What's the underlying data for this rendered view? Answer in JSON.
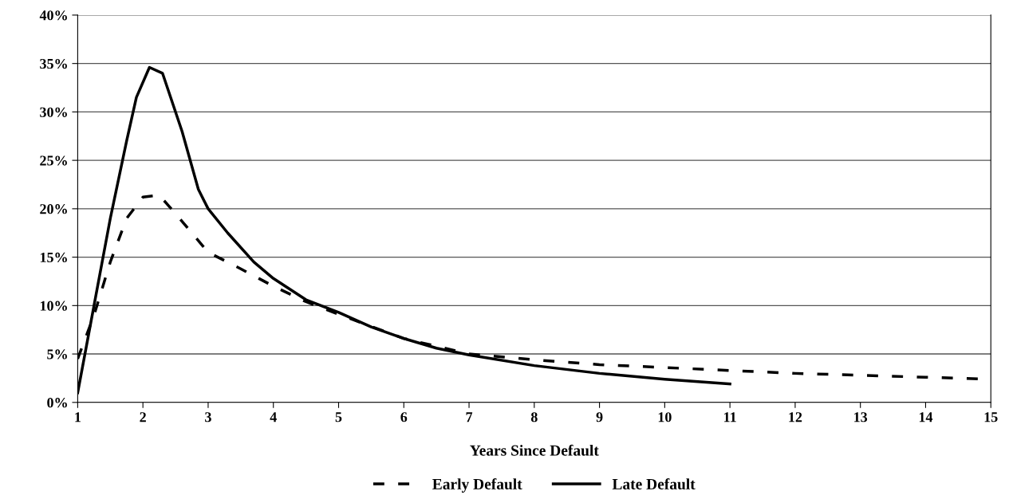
{
  "chart_data": {
    "type": "line",
    "xlabel": "Years Since Default",
    "xlim": [
      1,
      15
    ],
    "xticks": [
      1,
      2,
      3,
      4,
      5,
      6,
      7,
      8,
      9,
      10,
      11,
      12,
      13,
      14,
      15
    ],
    "ylim": [
      0,
      40
    ],
    "yticks": [
      {
        "value": 0,
        "label": "0%"
      },
      {
        "value": 5,
        "label": "5%"
      },
      {
        "value": 10,
        "label": "10%"
      },
      {
        "value": 15,
        "label": "15%"
      },
      {
        "value": 20,
        "label": "20%"
      },
      {
        "value": 25,
        "label": "25%"
      },
      {
        "value": 30,
        "label": "30%"
      },
      {
        "value": 35,
        "label": "35%"
      },
      {
        "value": 40,
        "label": "40%"
      }
    ],
    "grid": "y",
    "legend": "bottom",
    "marker": "none",
    "series": [
      {
        "name": "Early Default",
        "color": "#000000",
        "line_style": "dashed",
        "x": [
          1,
          1.25,
          1.5,
          1.75,
          2,
          2.25,
          2.5,
          2.75,
          3,
          3.5,
          4,
          4.5,
          5,
          6,
          7,
          8,
          9,
          10,
          11,
          12,
          13,
          14,
          15
        ],
        "values": [
          4.5,
          9,
          14.5,
          19,
          21.2,
          21.4,
          19.5,
          17.5,
          15.5,
          13.8,
          12,
          10.4,
          9.1,
          6.6,
          5.0,
          4.4,
          3.9,
          3.6,
          3.3,
          3.0,
          2.8,
          2.6,
          2.4
        ]
      },
      {
        "name": "Late Default",
        "color": "#000000",
        "line_style": "solid",
        "x": [
          1,
          1.25,
          1.5,
          1.75,
          1.9,
          2.1,
          2.3,
          2.6,
          2.85,
          3,
          3.3,
          3.7,
          4,
          4.5,
          5,
          5.5,
          6,
          6.5,
          7,
          8,
          9,
          10,
          11
        ],
        "values": [
          1,
          10,
          19,
          27,
          31.5,
          34.6,
          34,
          28,
          22,
          20,
          17.5,
          14.5,
          12.8,
          10.6,
          9.3,
          7.8,
          6.6,
          5.6,
          4.9,
          3.8,
          3.0,
          2.4,
          1.9
        ]
      }
    ]
  }
}
